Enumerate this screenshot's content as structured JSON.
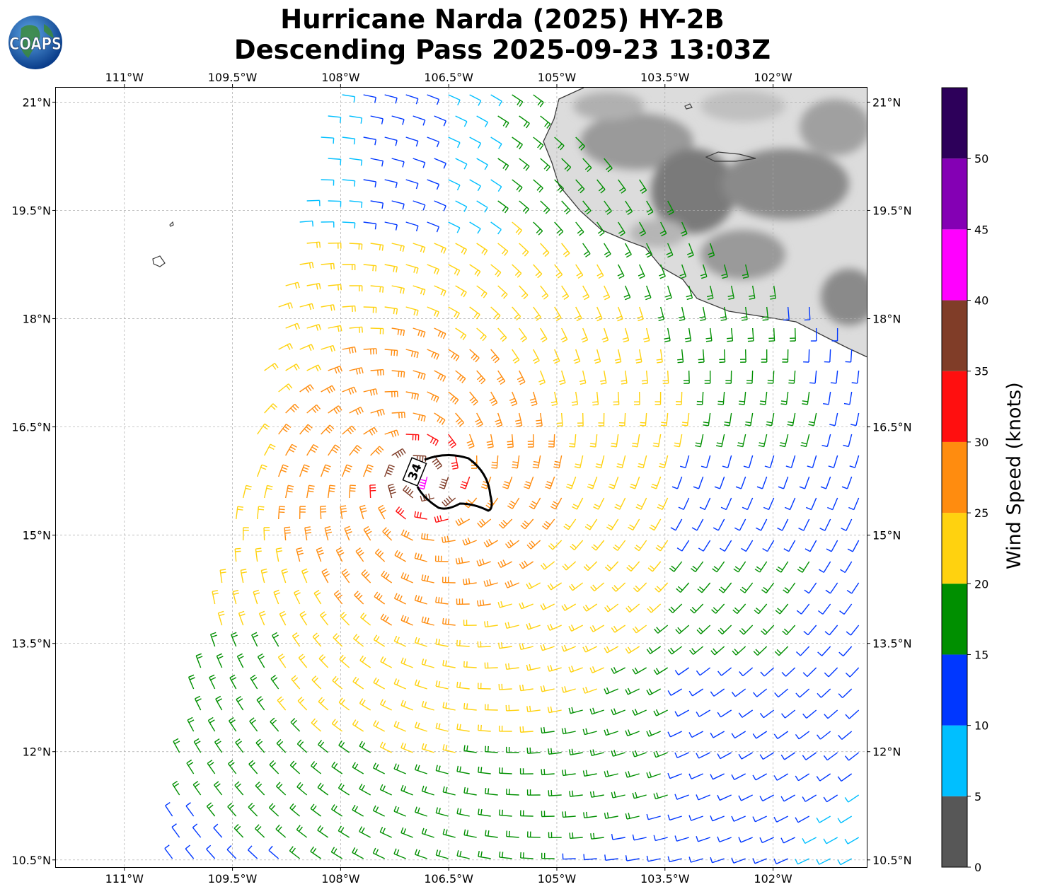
{
  "title": {
    "line1": "Hurricane Narda (2025) HY-2B",
    "line2": "Descending Pass 2025-09-23 13:03Z"
  },
  "logo": {
    "text": "COAPS",
    "icon": "globe-icon"
  },
  "map": {
    "projection": "plate-carree",
    "lon_range": [
      -111.95,
      -100.7
    ],
    "lat_range": [
      10.4,
      21.2
    ],
    "lon_ticks": [
      "111°W",
      "109.5°W",
      "108°W",
      "106.5°W",
      "105°W",
      "103.5°W",
      "102°W"
    ],
    "lat_ticks": [
      "21°N",
      "19.5°N",
      "18°N",
      "16.5°N",
      "15°N",
      "13.5°N",
      "12°N",
      "10.5°N"
    ],
    "gridlines": true,
    "storm_center": {
      "lon": -106.9,
      "lat": 15.8
    },
    "wind_radius_contour": {
      "label": "34",
      "units": "knots"
    },
    "land_colormap": "grayscale-elevation",
    "ocean_color": "#ffffff"
  },
  "colorbar": {
    "label": "Wind Speed (knots)",
    "ticks": [
      "0",
      "5",
      "10",
      "15",
      "20",
      "25",
      "30",
      "35",
      "40",
      "45",
      "50"
    ],
    "bins": [
      {
        "min": 0,
        "max": 5,
        "color": "#575757"
      },
      {
        "min": 5,
        "max": 10,
        "color": "#00bfff"
      },
      {
        "min": 10,
        "max": 15,
        "color": "#0037ff"
      },
      {
        "min": 15,
        "max": 20,
        "color": "#008f00"
      },
      {
        "min": 20,
        "max": 25,
        "color": "#ffd20f"
      },
      {
        "min": 25,
        "max": 30,
        "color": "#ff8c0f"
      },
      {
        "min": 30,
        "max": 35,
        "color": "#ff0f0f"
      },
      {
        "min": 35,
        "max": 40,
        "color": "#803d28"
      },
      {
        "min": 40,
        "max": 45,
        "color": "#ff00ff"
      },
      {
        "min": 45,
        "max": 50,
        "color": "#8400b4"
      },
      {
        "min": 50,
        "max": 55,
        "color": "#2d005a"
      }
    ]
  }
}
